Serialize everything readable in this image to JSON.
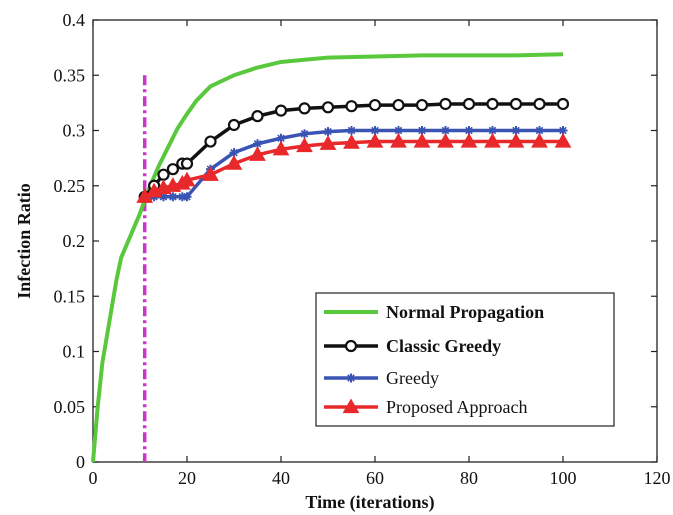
{
  "chart_data": {
    "type": "line",
    "xlabel": "Time (iterations)",
    "ylabel": "Infection Ratio",
    "xlim": [
      0,
      120
    ],
    "ylim": [
      0,
      0.4
    ],
    "xticks": [
      0,
      20,
      40,
      60,
      80,
      100,
      120
    ],
    "yticks": [
      0,
      0.05,
      0.1,
      0.15,
      0.2,
      0.25,
      0.3,
      0.35,
      0.4
    ],
    "xtick_labels": [
      "0",
      "20",
      "40",
      "60",
      "80",
      "100",
      "120"
    ],
    "ytick_labels": [
      "0",
      "0.05",
      "0.1",
      "0.15",
      "0.2",
      "0.25",
      "0.3",
      "0.35",
      "0.4"
    ],
    "grid": false,
    "legend_position": "bottom-right",
    "vline": {
      "x": 11,
      "color": "#c837c8",
      "style": "dash-dot"
    },
    "series": [
      {
        "name": "Normal Propagation",
        "color": "#5ac83c",
        "marker": "none",
        "x": [
          0,
          1,
          2,
          3,
          4,
          5,
          6,
          8,
          10,
          11,
          12,
          14,
          16,
          18,
          20,
          22,
          25,
          30,
          35,
          40,
          45,
          50,
          60,
          70,
          80,
          90,
          100
        ],
        "y": [
          0.0,
          0.05,
          0.09,
          0.115,
          0.14,
          0.165,
          0.185,
          0.205,
          0.225,
          0.237,
          0.248,
          0.268,
          0.285,
          0.302,
          0.315,
          0.327,
          0.34,
          0.35,
          0.357,
          0.362,
          0.364,
          0.366,
          0.367,
          0.368,
          0.368,
          0.368,
          0.369
        ]
      },
      {
        "name": "Classic Greedy",
        "color": "#111111",
        "marker": "circle",
        "x": [
          11,
          13,
          15,
          17,
          19,
          20,
          25,
          30,
          35,
          40,
          45,
          50,
          55,
          60,
          65,
          70,
          75,
          80,
          85,
          90,
          95,
          100
        ],
        "y": [
          0.24,
          0.25,
          0.26,
          0.265,
          0.27,
          0.27,
          0.29,
          0.305,
          0.313,
          0.318,
          0.32,
          0.321,
          0.322,
          0.323,
          0.323,
          0.323,
          0.324,
          0.324,
          0.324,
          0.324,
          0.324,
          0.324
        ]
      },
      {
        "name": "Greedy",
        "color": "#3a54b4",
        "marker": "star",
        "x": [
          11,
          13,
          15,
          17,
          19,
          20,
          25,
          30,
          35,
          40,
          45,
          50,
          55,
          60,
          65,
          70,
          75,
          80,
          85,
          90,
          95,
          100
        ],
        "y": [
          0.24,
          0.24,
          0.24,
          0.24,
          0.24,
          0.24,
          0.265,
          0.28,
          0.288,
          0.293,
          0.297,
          0.299,
          0.3,
          0.3,
          0.3,
          0.3,
          0.3,
          0.3,
          0.3,
          0.3,
          0.3,
          0.3
        ]
      },
      {
        "name": "Proposed Approach",
        "color": "#e8282a",
        "marker": "triangle",
        "x": [
          11,
          13,
          15,
          17,
          19,
          20,
          25,
          30,
          35,
          40,
          45,
          50,
          55,
          60,
          65,
          70,
          75,
          80,
          85,
          90,
          95,
          100
        ],
        "y": [
          0.24,
          0.245,
          0.248,
          0.25,
          0.252,
          0.255,
          0.26,
          0.27,
          0.278,
          0.283,
          0.286,
          0.288,
          0.289,
          0.29,
          0.29,
          0.29,
          0.29,
          0.29,
          0.29,
          0.29,
          0.29,
          0.29
        ]
      }
    ]
  }
}
